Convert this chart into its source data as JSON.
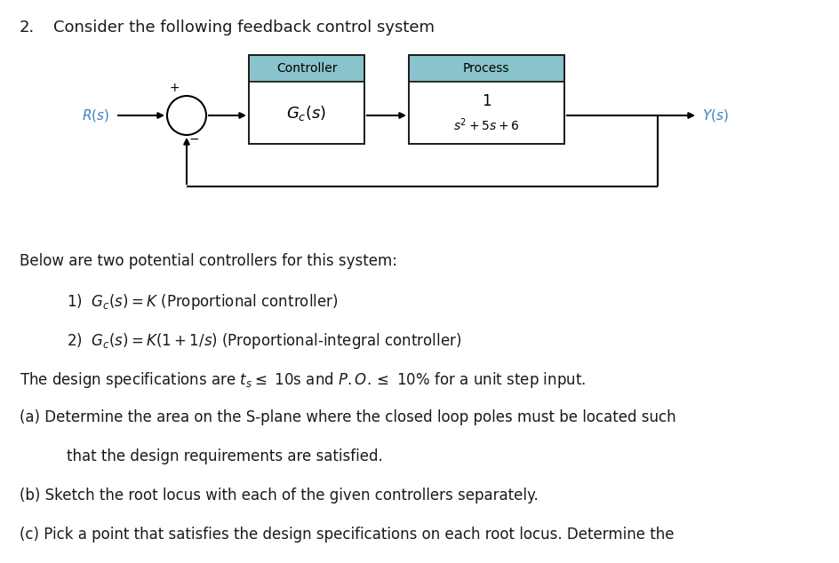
{
  "title_number": "2.",
  "title_text": "Consider the following feedback control system",
  "controller_label": "Controller",
  "process_label": "Process",
  "gc_label": "$G_c(s)$",
  "process_numerator": "1",
  "process_denominator": "$s^2 + 5s + 6$",
  "R_label": "$R(s)$",
  "Y_label": "$Y(s)$",
  "bg_color": "#ffffff",
  "box_edge_color": "#1a1a1a",
  "teal_color": "#89C4CC",
  "blue_label_color": "#3B7FC4",
  "text_color": "#1a1a1a",
  "list_item1": "1)  $G_c(s) = K$ (Proportional controller)",
  "list_item2": "2)  $G_c(s) = K(1 + 1/s)$ (Proportional-integral controller)",
  "figsize": [
    9.44,
    6.34
  ],
  "dpi": 100
}
